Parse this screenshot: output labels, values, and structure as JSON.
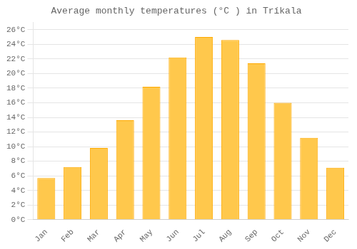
{
  "chart_data": {
    "type": "bar",
    "title": "Average monthly temperatures (°C ) in Tríkala",
    "categories": [
      "Jan",
      "Feb",
      "Mar",
      "Apr",
      "May",
      "Jun",
      "Jul",
      "Aug",
      "Sep",
      "Oct",
      "Nov",
      "Dec"
    ],
    "values": [
      5.7,
      7.2,
      9.8,
      13.6,
      18.2,
      22.2,
      25.0,
      24.6,
      21.4,
      16.0,
      11.2,
      7.1
    ],
    "color": "#FFC84C",
    "ylim": [
      0,
      27
    ],
    "yticks": [
      {
        "value": 0,
        "label": "0°C"
      },
      {
        "value": 2,
        "label": "2°C"
      },
      {
        "value": 4,
        "label": "4°C"
      },
      {
        "value": 6,
        "label": "6°C"
      },
      {
        "value": 8,
        "label": "8°C"
      },
      {
        "value": 10,
        "label": "10°C"
      },
      {
        "value": 12,
        "label": "12°C"
      },
      {
        "value": 14,
        "label": "14°C"
      },
      {
        "value": 16,
        "label": "16°C"
      },
      {
        "value": 18,
        "label": "18°C"
      },
      {
        "value": 20,
        "label": "20°C"
      },
      {
        "value": 22,
        "label": "22°C"
      },
      {
        "value": 24,
        "label": "24°C"
      },
      {
        "value": 26,
        "label": "26°C"
      }
    ],
    "grid": true
  }
}
